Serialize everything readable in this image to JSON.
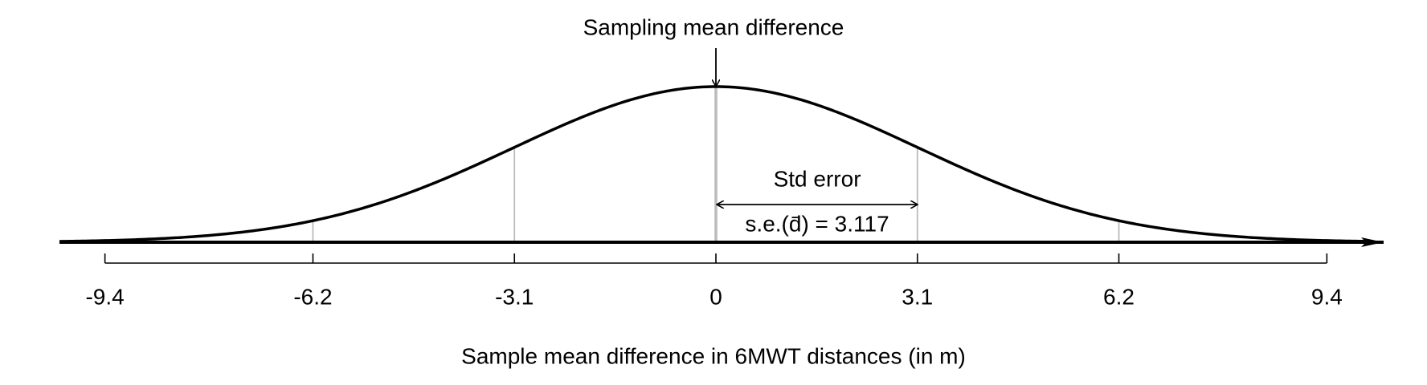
{
  "chart_data": {
    "type": "normal",
    "title": "Sampling mean difference",
    "xlabel": "Sample mean difference in 6MWT distances (in m)",
    "mean": 0,
    "sd": 3.117,
    "annotations": {
      "std_error": "Std error",
      "se_label": "s.e.(d̄) = 3.117"
    },
    "xlim": [
      -10.1,
      10.1
    ],
    "xticks": [
      -9.4,
      -6.2,
      -3.1,
      0,
      3.1,
      6.2,
      9.4
    ],
    "color": "#000000",
    "guide_color": "#bbbbbb"
  }
}
